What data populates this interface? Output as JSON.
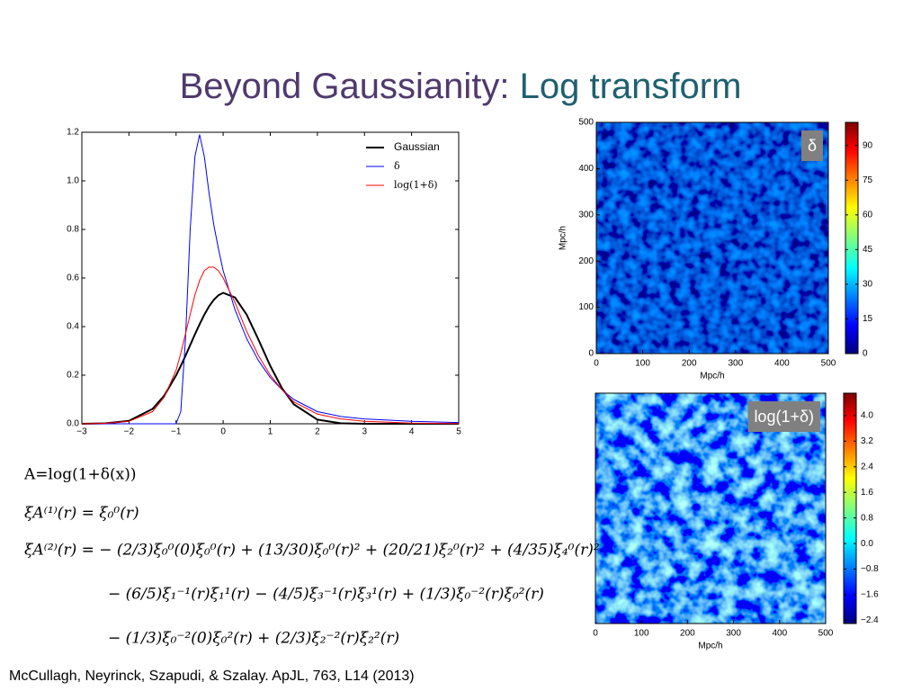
{
  "title": {
    "main": "Beyond Gaussianity:",
    "highlight": "Log transform"
  },
  "chart_data": [
    {
      "type": "line",
      "x": [
        -3,
        -2.5,
        -2,
        -1.5,
        -1.25,
        -1,
        -0.9,
        -0.8,
        -0.7,
        -0.6,
        -0.5,
        -0.4,
        -0.3,
        -0.2,
        -0.1,
        0,
        0.25,
        0.5,
        0.75,
        1,
        1.25,
        1.5,
        2,
        2.5,
        3,
        4,
        5
      ],
      "series": [
        {
          "name": "Gaussian",
          "color": "#000000",
          "values": [
            0,
            0.002,
            0.012,
            0.061,
            0.116,
            0.199,
            0.238,
            0.28,
            0.324,
            0.368,
            0.41,
            0.449,
            0.483,
            0.51,
            0.529,
            0.539,
            0.52,
            0.449,
            0.346,
            0.238,
            0.146,
            0.08,
            0.017,
            0.002,
            0,
            0,
            0
          ]
        },
        {
          "name": "δ",
          "color": "#0000ff",
          "values": [
            0,
            0,
            0,
            0,
            0,
            0,
            0.05,
            0.35,
            0.8,
            1.1,
            1.19,
            1.1,
            0.95,
            0.82,
            0.72,
            0.63,
            0.47,
            0.35,
            0.26,
            0.19,
            0.14,
            0.1,
            0.05,
            0.03,
            0.02,
            0.01,
            0.005
          ]
        },
        {
          "name": "log(1+δ)",
          "color": "#ff0000",
          "values": [
            0,
            0.002,
            0.01,
            0.05,
            0.11,
            0.22,
            0.29,
            0.37,
            0.45,
            0.53,
            0.59,
            0.63,
            0.645,
            0.645,
            0.63,
            0.6,
            0.5,
            0.38,
            0.28,
            0.2,
            0.14,
            0.09,
            0.04,
            0.02,
            0.01,
            0.003,
            0.001
          ]
        }
      ],
      "xlim": [
        -3,
        5
      ],
      "xticks": [
        {
          "value": -3,
          "label": "−3"
        },
        {
          "value": -2,
          "label": "−2"
        },
        {
          "value": -1,
          "label": "−1"
        },
        0,
        1,
        2,
        3,
        4,
        5
      ],
      "ylim": [
        0,
        1.2
      ],
      "yticks": [
        {
          "value": 0,
          "label": "0.0"
        },
        0.2,
        0.4,
        0.6,
        0.8,
        {
          "value": 1,
          "label": "1.0"
        },
        1.2
      ],
      "grid": false,
      "legend": "upper right"
    },
    {
      "type": "heatmap",
      "label": "δ",
      "xlabel": "Mpc/h",
      "ylabel": "Mpc/h",
      "xlim": [
        0,
        500
      ],
      "xticks": [
        0,
        100,
        200,
        300,
        400,
        500
      ],
      "ylim": [
        0,
        500
      ],
      "yticks": [
        0,
        100,
        200,
        300,
        400,
        500
      ],
      "colormap": "jet",
      "colorbar": {
        "lim": [
          0,
          100
        ],
        "ticks": [
          0,
          15,
          30,
          45,
          60,
          75,
          90
        ]
      }
    },
    {
      "type": "heatmap",
      "label": "log(1+δ)",
      "xlabel": "Mpc/h",
      "xlim": [
        0,
        500
      ],
      "xticks": [
        0,
        100,
        200,
        300,
        400,
        500
      ],
      "colormap": "jet",
      "colorbar": {
        "lim": [
          -2.5,
          4.7
        ],
        "ticks": [
          {
            "value": -2.4,
            "label": "−2.4"
          },
          {
            "value": -1.6,
            "label": "−1.6"
          },
          {
            "value": -0.8,
            "label": "−0.8"
          },
          {
            "value": 0,
            "label": "0.0"
          },
          0.8,
          1.6,
          2.4,
          3.2,
          {
            "value": 4,
            "label": "4.0"
          }
        ]
      }
    }
  ],
  "equations": [
    "A=log(1+δ(x))",
    "ξA⁽¹⁾(r) = ξ₀⁰(r)",
    "ξA⁽²⁾(r) = − (2/3)ξ₀⁰(0)ξ₀⁰(r) + (13/30)ξ₀⁰(r)² + (20/21)ξ₂⁰(r)² + (4/35)ξ₄⁰(r)²",
    "− (6/5)ξ₁⁻¹(r)ξ₁¹(r) − (4/5)ξ₃⁻¹(r)ξ₃¹(r) + (1/3)ξ₀⁻²(r)ξ₀²(r)",
    "− (1/3)ξ₀⁻²(0)ξ₀²(r) + (2/3)ξ₂⁻²(r)ξ₂²(r)"
  ],
  "citation": "McCullagh, Neyrinck, Szapudi, & Szalay. ApJL, 763, L14 (2013)"
}
